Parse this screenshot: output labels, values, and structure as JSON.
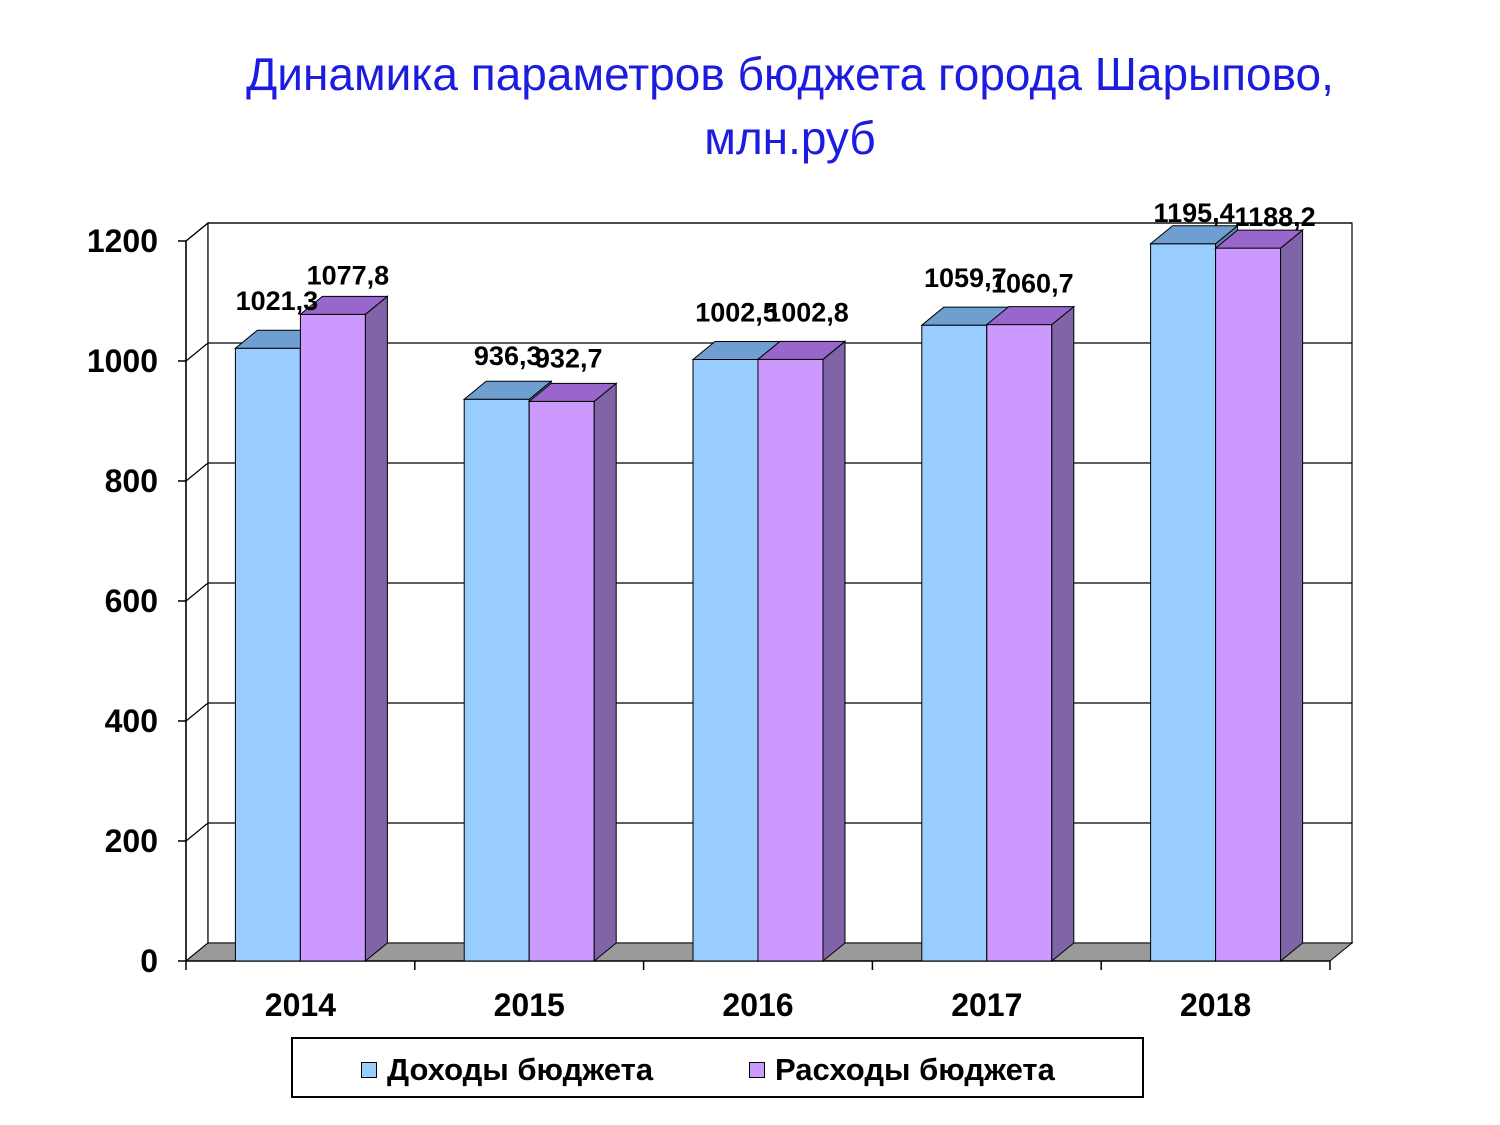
{
  "chart_data": {
    "type": "bar",
    "title": "Динамика параметров бюджета города Шарыпово, млн.руб",
    "title_lines": [
      "Динамика параметров бюджета города Шарыпово,",
      "млн.руб"
    ],
    "categories": [
      "2014",
      "2015",
      "2016",
      "2017",
      "2018"
    ],
    "series": [
      {
        "name": "Доходы бюджета",
        "values": [
          1021.3,
          936.3,
          1002.5,
          1059.7,
          1195.4
        ],
        "labels": [
          "1021,3",
          "936,3",
          "1002,5",
          "1059,7",
          "1195,4"
        ],
        "color": "#99ccff",
        "top_color": "#6f9fd0",
        "side_color": "#5f85b0"
      },
      {
        "name": "Расходы бюджета",
        "values": [
          1077.8,
          932.7,
          1002.8,
          1060.7,
          1188.2
        ],
        "labels": [
          "1077,8",
          "932,7",
          "1002,8",
          "1060,7",
          "1188,2"
        ],
        "color": "#cc99ff",
        "top_color": "#9966cc",
        "side_color": "#8064a8"
      }
    ],
    "yticks": [
      "0",
      "200",
      "400",
      "600",
      "800",
      "1000",
      "1200"
    ],
    "ylim": [
      0,
      1200
    ],
    "grid": true,
    "legend_position": "bottom",
    "three_d": true
  },
  "legend": {
    "items": [
      {
        "label": "Доходы бюджета",
        "color": "#99ccff"
      },
      {
        "label": "Расходы бюджета",
        "color": "#cc99ff"
      }
    ]
  }
}
